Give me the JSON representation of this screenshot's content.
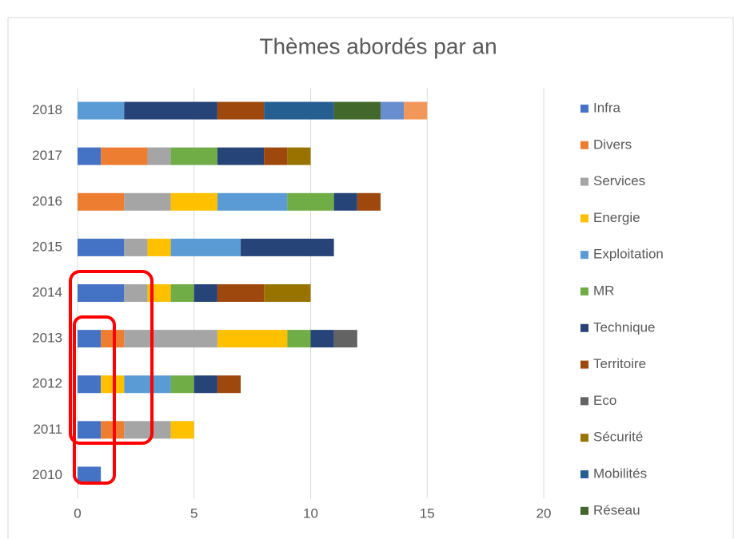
{
  "chart_data": {
    "type": "bar",
    "orientation": "horizontal",
    "stacked": true,
    "title": "Thèmes abordés  par an",
    "categories": [
      "2010",
      "2011",
      "2012",
      "2013",
      "2014",
      "2015",
      "2016",
      "2017",
      "2018"
    ],
    "series": [
      {
        "name": "Infra",
        "color": "#4472C4",
        "values": [
          1,
          1,
          1,
          1,
          2,
          2,
          0,
          1,
          0
        ]
      },
      {
        "name": "Divers",
        "color": "#ED7D31",
        "values": [
          0,
          1,
          0,
          1,
          0,
          0,
          2,
          2,
          0
        ]
      },
      {
        "name": "Services",
        "color": "#A5A5A5",
        "values": [
          0,
          2,
          0,
          4,
          1,
          1,
          2,
          1,
          0
        ]
      },
      {
        "name": "Energie",
        "color": "#FFC000",
        "values": [
          0,
          1,
          1,
          3,
          1,
          1,
          2,
          0,
          0
        ]
      },
      {
        "name": "Exploitation",
        "color": "#5B9BD5",
        "values": [
          0,
          0,
          2,
          0,
          0,
          3,
          3,
          0,
          2
        ]
      },
      {
        "name": "MR",
        "color": "#70AD47",
        "values": [
          0,
          0,
          1,
          1,
          1,
          0,
          2,
          2,
          0
        ]
      },
      {
        "name": "Technique",
        "color": "#264478",
        "values": [
          0,
          0,
          1,
          1,
          1,
          4,
          1,
          2,
          4
        ]
      },
      {
        "name": "Territoire",
        "color": "#9E480E",
        "values": [
          0,
          0,
          1,
          0,
          2,
          0,
          1,
          1,
          2
        ]
      },
      {
        "name": "Eco",
        "color": "#636363",
        "values": [
          0,
          0,
          0,
          1,
          0,
          0,
          0,
          0,
          0
        ]
      },
      {
        "name": "Sécurité",
        "color": "#997300",
        "values": [
          0,
          0,
          0,
          0,
          2,
          0,
          0,
          1,
          0
        ]
      },
      {
        "name": "Mobilités",
        "color": "#255E91",
        "values": [
          0,
          0,
          0,
          0,
          0,
          0,
          0,
          0,
          3
        ]
      },
      {
        "name": "Réseau",
        "color": "#43682B",
        "values": [
          0,
          0,
          0,
          0,
          0,
          0,
          0,
          0,
          2
        ]
      },
      {
        "name": null,
        "color": "#698ED0",
        "values": [
          0,
          0,
          0,
          0,
          0,
          0,
          0,
          0,
          1
        ]
      },
      {
        "name": null,
        "color": "#F1975A",
        "values": [
          0,
          0,
          0,
          0,
          0,
          0,
          0,
          0,
          1
        ]
      }
    ],
    "xlim": [
      0,
      20
    ],
    "xticks": [
      0,
      5,
      10,
      15,
      20
    ],
    "grid": true,
    "legend": "right"
  }
}
